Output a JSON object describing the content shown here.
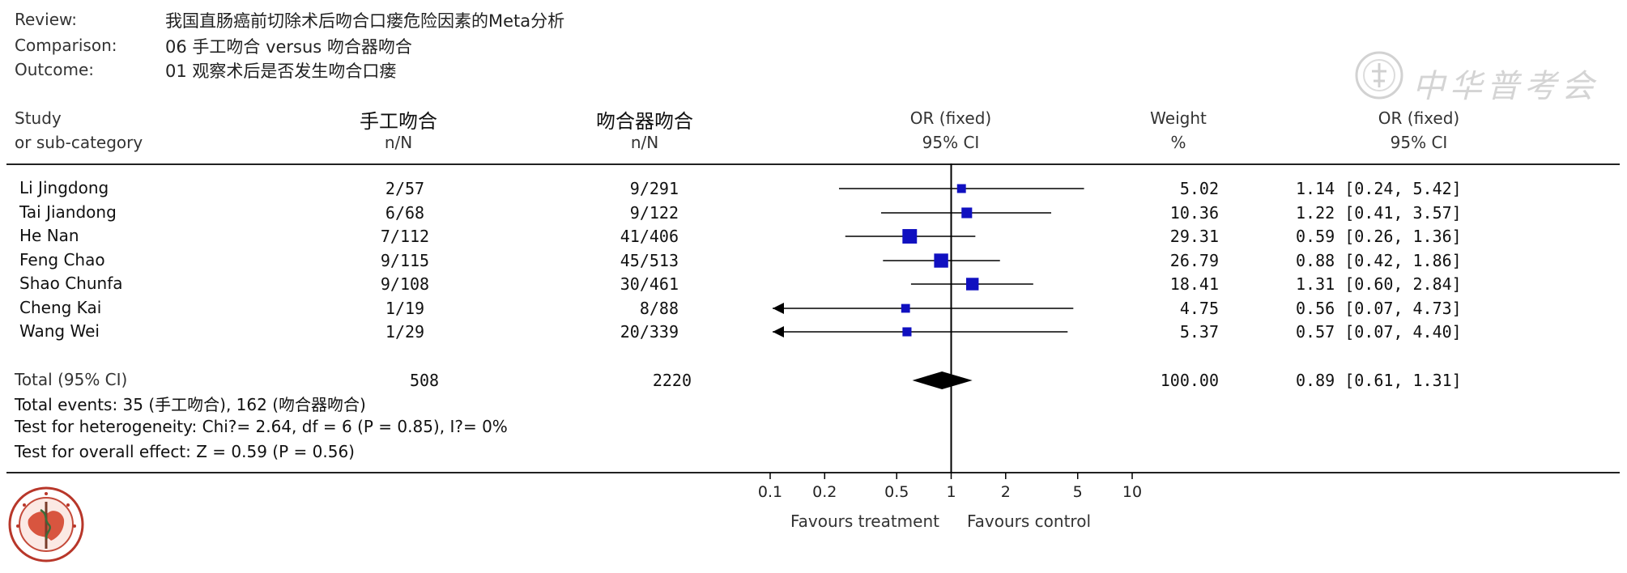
{
  "meta": {
    "review_label": "Review:",
    "review_value": "我国直肠癌前切除术后吻合口瘘危险因素的Meta分析",
    "comparison_label": "Comparison:",
    "comparison_value": "06 手工吻合 versus 吻合器吻合",
    "outcome_label": "Outcome:",
    "outcome_value": "01 观察术后是否发生吻合口瘘"
  },
  "headers": {
    "study_1": "Study",
    "study_2": "or sub-category",
    "group1_1": "手工吻合",
    "group1_2": "n/N",
    "group2_1": "吻合器吻合",
    "group2_2": "n/N",
    "plot_1": "OR (fixed)",
    "plot_2": "95% CI",
    "weight_1": "Weight",
    "weight_2": "%",
    "or_1": "OR (fixed)",
    "or_2": "95% CI"
  },
  "rows": [
    {
      "study": "Li Jingdong",
      "g1": "2/57",
      "g2": "9/291",
      "weight": "5.02",
      "ci": "1.14 [0.24, 5.42]"
    },
    {
      "study": "Tai Jiandong",
      "g1": "6/68",
      "g2": "9/122",
      "weight": "10.36",
      "ci": "1.22 [0.41, 3.57]"
    },
    {
      "study": "He Nan",
      "g1": "7/112",
      "g2": "41/406",
      "weight": "29.31",
      "ci": "0.59 [0.26, 1.36]"
    },
    {
      "study": "Feng Chao",
      "g1": "9/115",
      "g2": "45/513",
      "weight": "26.79",
      "ci": "0.88 [0.42, 1.86]"
    },
    {
      "study": "Shao Chunfa",
      "g1": "9/108",
      "g2": "30/461",
      "weight": "18.41",
      "ci": "1.31 [0.60, 2.84]"
    },
    {
      "study": "Cheng Kai",
      "g1": "1/19",
      "g2": "8/88",
      "weight": "4.75",
      "ci": "0.56 [0.07, 4.73]"
    },
    {
      "study": "Wang Wei",
      "g1": "1/29",
      "g2": "20/339",
      "weight": "5.37",
      "ci": "0.57 [0.07, 4.40]"
    }
  ],
  "total": {
    "label": "Total (95% CI)",
    "g1": "508",
    "g2": "2220",
    "weight": "100.00",
    "ci": "0.89 [0.61, 1.31]"
  },
  "stats": {
    "events": "Total events: 35 (手工吻合), 162 (吻合器吻合)",
    "heterogeneity": "Test for heterogeneity: Chi?= 2.64, df = 6 (P = 0.85), I?= 0%",
    "overall": "Test for overall effect: Z = 0.59 (P = 0.56)"
  },
  "footer": {
    "favours_left": "Favours treatment",
    "favours_right": "Favours control"
  },
  "watermark": {
    "text": "中华普考会"
  },
  "chart_data": {
    "type": "scatter",
    "scale": "log",
    "xlim": [
      0.1,
      10
    ],
    "ticks": [
      0.1,
      0.2,
      0.5,
      1,
      2,
      5,
      10
    ],
    "tick_labels": [
      "0.1",
      "0.2",
      "0.5",
      "1",
      "2",
      "5",
      "10"
    ],
    "reference_line": 1,
    "colors": {
      "marker": "#1010c0",
      "diamond": "#000000",
      "line": "#000000"
    },
    "studies": [
      {
        "or": 1.14,
        "lo": 0.24,
        "hi": 5.42,
        "weight": 5.02,
        "arrow_left": false
      },
      {
        "or": 1.22,
        "lo": 0.41,
        "hi": 3.57,
        "weight": 10.36,
        "arrow_left": false
      },
      {
        "or": 0.59,
        "lo": 0.26,
        "hi": 1.36,
        "weight": 29.31,
        "arrow_left": false
      },
      {
        "or": 0.88,
        "lo": 0.42,
        "hi": 1.86,
        "weight": 26.79,
        "arrow_left": false
      },
      {
        "or": 1.31,
        "lo": 0.6,
        "hi": 2.84,
        "weight": 18.41,
        "arrow_left": false
      },
      {
        "or": 0.56,
        "lo": 0.07,
        "hi": 4.73,
        "weight": 4.75,
        "arrow_left": true
      },
      {
        "or": 0.57,
        "lo": 0.07,
        "hi": 4.4,
        "weight": 5.37,
        "arrow_left": true
      }
    ],
    "pooled": {
      "or": 0.89,
      "lo": 0.61,
      "hi": 1.31
    }
  }
}
